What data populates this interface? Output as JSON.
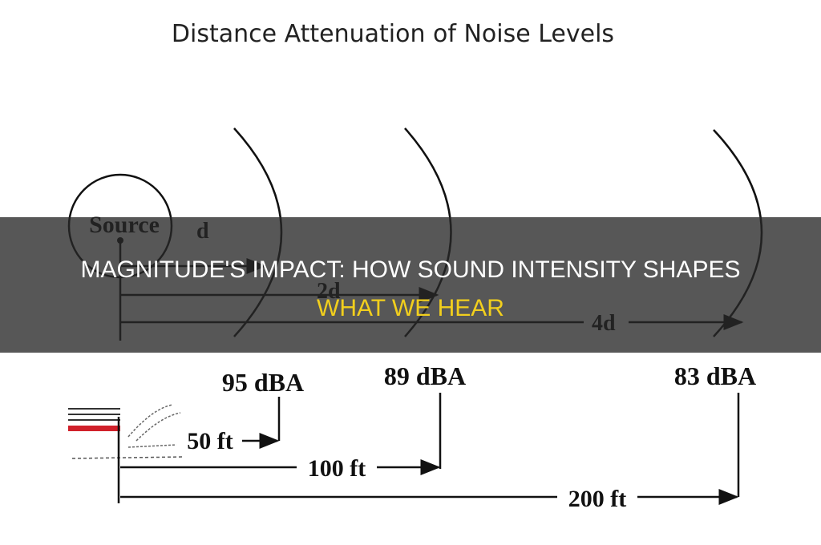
{
  "diagram": {
    "title": "Distance Attenuation of Noise Levels",
    "source_label": "Source",
    "distance_labels": [
      "d",
      "2d",
      "4d"
    ],
    "levels": [
      "95 dBA",
      "89 dBA",
      "83 dBA"
    ],
    "distances": [
      "50 ft",
      "100 ft",
      "200 ft"
    ]
  },
  "banner": {
    "title": "MAGNITUDE'S IMPACT: HOW SOUND INTENSITY SHAPES",
    "highlight": "WHAT WE HEAR"
  }
}
